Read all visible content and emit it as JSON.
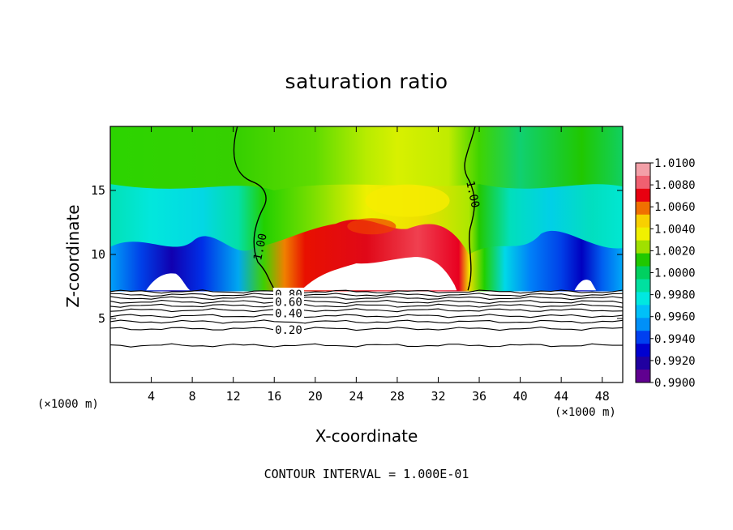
{
  "chart_data": {
    "type": "heatmap",
    "title": "saturation ratio",
    "xlabel": "X-coordinate",
    "ylabel": "Z-coordinate",
    "x_unit_label": "(×1000 m)",
    "footer": "CONTOUR INTERVAL = 1.000E-01",
    "xlim": [
      0,
      50
    ],
    "ylim": [
      0,
      20
    ],
    "x_ticks": [
      4,
      8,
      12,
      16,
      20,
      24,
      28,
      32,
      36,
      40,
      44,
      48
    ],
    "y_ticks": [
      5,
      10,
      15
    ],
    "colorbar": {
      "min": 0.99,
      "max": 1.01,
      "tick_labels": [
        "1.0100",
        "1.0080",
        "1.0060",
        "1.0040",
        "1.0020",
        "1.0000",
        "0.9980",
        "0.9960",
        "0.9940",
        "0.9920",
        "0.9900"
      ],
      "colors": [
        "#F3A0A8",
        "#F06070",
        "#E80010",
        "#F07000",
        "#F8D000",
        "#F0F000",
        "#A0E000",
        "#20C800",
        "#00D060",
        "#00E0A0",
        "#00E8E0",
        "#00C0F8",
        "#0090F8",
        "#0040F0",
        "#0000D0",
        "#2000A0",
        "#600090"
      ]
    },
    "contour_labels": [
      {
        "text": "1.00",
        "x": 14.6,
        "y": 10.6
      },
      {
        "text": "1.00",
        "x": 35.4,
        "y": 14.7
      },
      {
        "text": "0.80",
        "x": 17.4,
        "y": 6.9
      },
      {
        "text": "0.60",
        "x": 17.4,
        "y": 6.3
      },
      {
        "text": "0.40",
        "x": 17.4,
        "y": 5.4
      },
      {
        "text": "0.20",
        "x": 17.4,
        "y": 4.1
      }
    ],
    "grid": false
  }
}
